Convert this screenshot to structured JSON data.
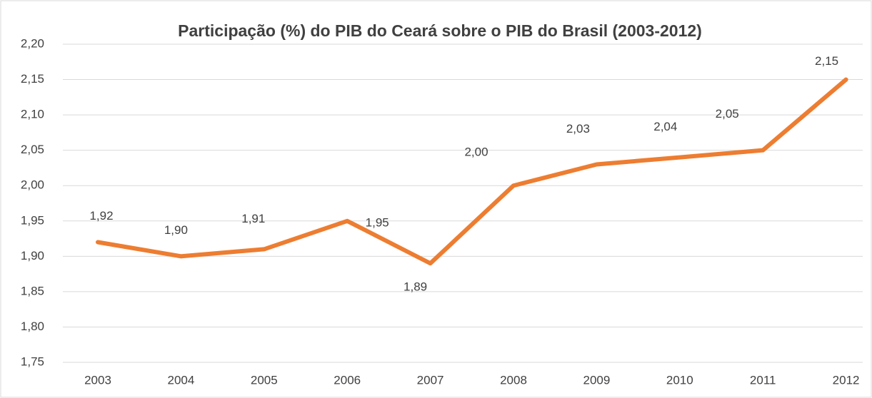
{
  "chart_data": {
    "type": "line",
    "title": "Participação (%) do PIB do Ceará sobre o PIB do Brasil (2003-2012)",
    "categories": [
      "2003",
      "2004",
      "2005",
      "2006",
      "2007",
      "2008",
      "2009",
      "2010",
      "2011",
      "2012"
    ],
    "series": [
      {
        "name": "Participação",
        "color": "#ed7d31",
        "values": [
          1.92,
          1.9,
          1.91,
          1.95,
          1.89,
          2.0,
          2.03,
          2.04,
          2.05,
          2.15
        ],
        "value_labels": [
          "1,92",
          "1,90",
          "1,91",
          "1,95",
          "1,89",
          "2,00",
          "2,03",
          "2,04",
          "2,05",
          "2,15"
        ]
      }
    ],
    "ylim": [
      1.75,
      2.2
    ],
    "yticks": [
      {
        "value": 1.75,
        "label": "1,75"
      },
      {
        "value": 1.8,
        "label": "1,80"
      },
      {
        "value": 1.85,
        "label": "1,85"
      },
      {
        "value": 1.9,
        "label": "1,90"
      },
      {
        "value": 1.95,
        "label": "1,95"
      },
      {
        "value": 2.0,
        "label": "2,00"
      },
      {
        "value": 2.05,
        "label": "2,05"
      },
      {
        "value": 2.1,
        "label": "2,10"
      },
      {
        "value": 2.15,
        "label": "2,15"
      },
      {
        "value": 2.2,
        "label": "2,20"
      }
    ],
    "grid": true
  }
}
